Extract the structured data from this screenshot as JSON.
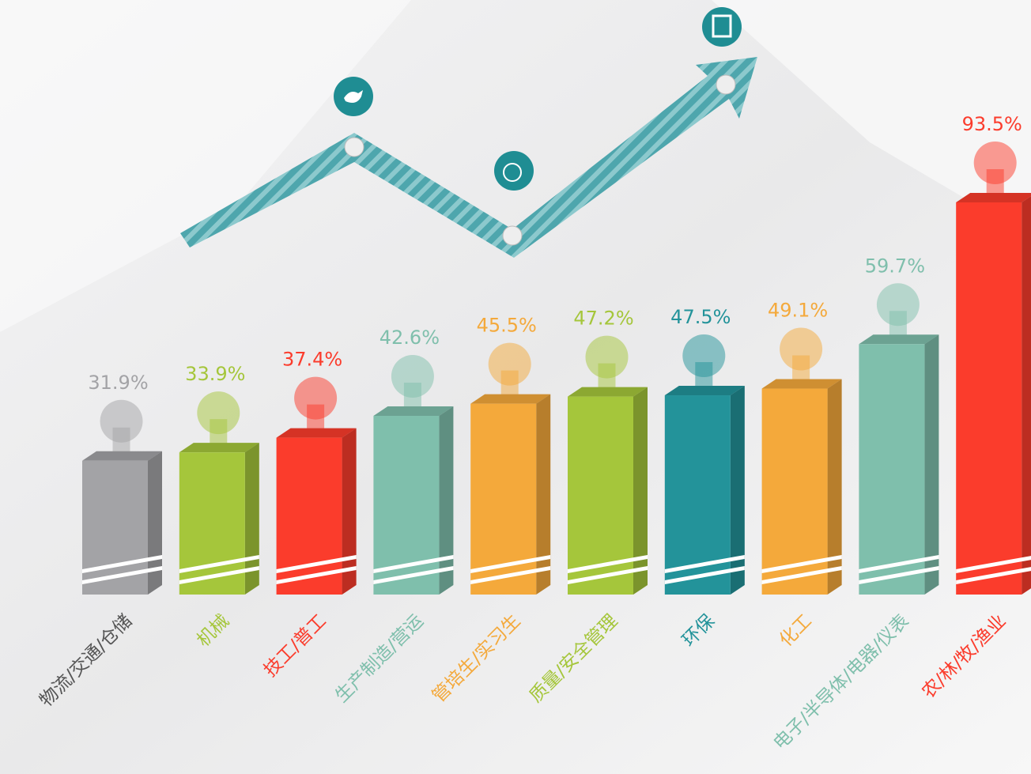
{
  "chart_data": {
    "type": "bar",
    "categories": [
      "物流/交通/仓储",
      "机械",
      "技工/普工",
      "生产制造/营运",
      "管培生/实习生",
      "质量/安全管理",
      "环保",
      "化工",
      "电子/半导体/电器/仪表",
      "农/林/牧/渔业"
    ],
    "values": [
      31.9,
      33.9,
      37.4,
      42.6,
      45.5,
      47.2,
      47.5,
      49.1,
      59.7,
      93.5
    ],
    "value_labels": [
      "31.9%",
      "33.9%",
      "37.4%",
      "42.6%",
      "45.5%",
      "47.2%",
      "47.5%",
      "49.1%",
      "59.7%",
      "93.5%"
    ],
    "colors": [
      "#a3a3a6",
      "#a5c63b",
      "#fb3c2c",
      "#7fbfac",
      "#f4a93b",
      "#a5c63b",
      "#23939a",
      "#f4a93b",
      "#7fbfac",
      "#fb3c2c"
    ]
  }
}
